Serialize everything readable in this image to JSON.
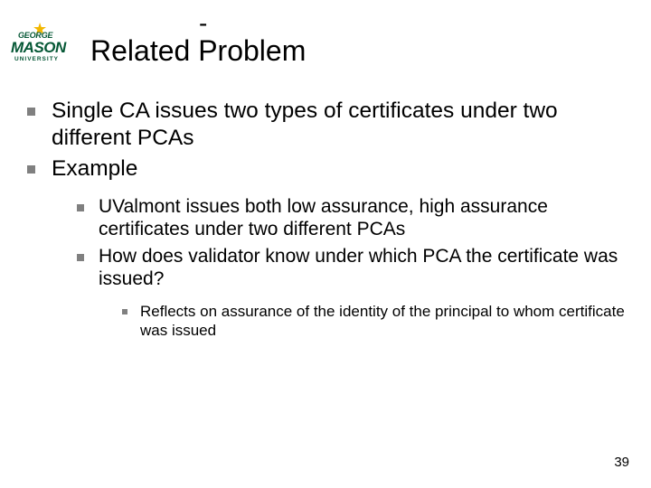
{
  "logo": {
    "line1": "GEORGE",
    "line2": "MASON",
    "line3": "UNIVERSITY",
    "brand_green": "#065836",
    "star_color": "#f2b700"
  },
  "top_dash": "-",
  "title": "Related Problem",
  "bullets": {
    "lvl1": [
      "Single CA issues two types of certificates under two different PCAs",
      "Example"
    ],
    "lvl2": [
      "UValmont issues both low assurance, high assurance certificates under two different PCAs",
      "How does validator know under which PCA the certificate was issued?"
    ],
    "lvl3": [
      "Reflects on assurance of the identity of the principal to whom certificate was issued"
    ]
  },
  "page_number": "39",
  "colors": {
    "bullet_gray": "#808080",
    "text": "#000000",
    "background": "#ffffff"
  },
  "fonts": {
    "title_size": 32,
    "lvl1_size": 24.5,
    "lvl2_size": 21,
    "lvl3_size": 17,
    "pagenum_size": 15
  }
}
